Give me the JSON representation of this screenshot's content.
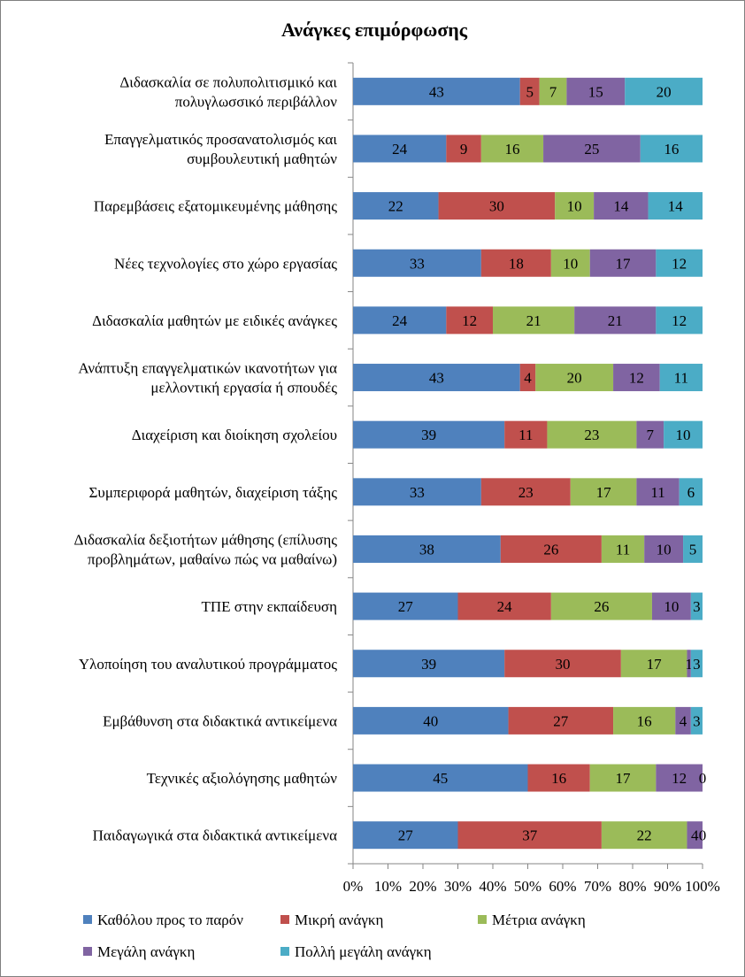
{
  "chart_data": {
    "type": "bar",
    "orientation": "horizontal",
    "stacked": "percent",
    "title": "Ανάγκες επιμόρφωσης",
    "categories": [
      [
        "Διδασκαλία σε πολυπολιτισμικό και",
        "πολυγλωσσικό περιβάλλον"
      ],
      [
        "Επαγγελματικός προσανατολισμός και",
        "συμβουλευτική μαθητών"
      ],
      [
        "Παρεμβάσεις εξατομικευμένης μάθησης"
      ],
      [
        "Νέες τεχνολογίες στο χώρο εργασίας"
      ],
      [
        "Διδασκαλία μαθητών με ειδικές ανάγκες"
      ],
      [
        "Ανάπτυξη επαγγελματικών ικανοτήτων για",
        "μελλοντική εργασία ή σπουδές"
      ],
      [
        "Διαχείριση και διοίκηση σχολείου"
      ],
      [
        "Συμπεριφορά μαθητών, διαχείριση τάξης"
      ],
      [
        "Διδασκαλία δεξιοτήτων μάθησης (επίλυσης",
        "προβλημάτων, μαθαίνω πώς να μαθαίνω)"
      ],
      [
        "ΤΠΕ στην εκπαίδευση"
      ],
      [
        "Υλοποίηση του αναλυτικού προγράμματος"
      ],
      [
        "Εμβάθυνση στα διδακτικά αντικείμενα"
      ],
      [
        "Τεχνικές αξιολόγησης μαθητών"
      ],
      [
        "Παιδαγωγικά στα διδακτικά αντικείμενα"
      ]
    ],
    "series": [
      {
        "name": "Καθόλου προς το παρόν",
        "color": "#4F81BD",
        "values": [
          43,
          24,
          22,
          33,
          24,
          43,
          39,
          33,
          38,
          27,
          39,
          40,
          45,
          27
        ]
      },
      {
        "name": "Μικρή ανάγκη",
        "color": "#C0504D",
        "values": [
          5,
          9,
          30,
          18,
          12,
          4,
          11,
          23,
          26,
          24,
          30,
          27,
          16,
          37
        ]
      },
      {
        "name": "Μέτρια ανάγκη",
        "color": "#9BBB59",
        "values": [
          7,
          16,
          10,
          10,
          21,
          20,
          23,
          17,
          11,
          26,
          17,
          16,
          17,
          22
        ]
      },
      {
        "name": "Μεγάλη ανάγκη",
        "color": "#8064A2",
        "values": [
          15,
          25,
          14,
          17,
          21,
          12,
          7,
          11,
          10,
          10,
          1,
          4,
          12,
          4
        ]
      },
      {
        "name": "Πολλή μεγάλη ανάγκη",
        "color": "#4BACC6",
        "values": [
          20,
          16,
          14,
          12,
          12,
          11,
          10,
          6,
          5,
          3,
          3,
          3,
          0,
          0
        ]
      }
    ],
    "xticks": [
      "0%",
      "10%",
      "20%",
      "30%",
      "40%",
      "50%",
      "60%",
      "70%",
      "80%",
      "90%",
      "100%"
    ],
    "xlim": [
      0,
      100
    ],
    "grid": false,
    "legend_position": "bottom"
  }
}
